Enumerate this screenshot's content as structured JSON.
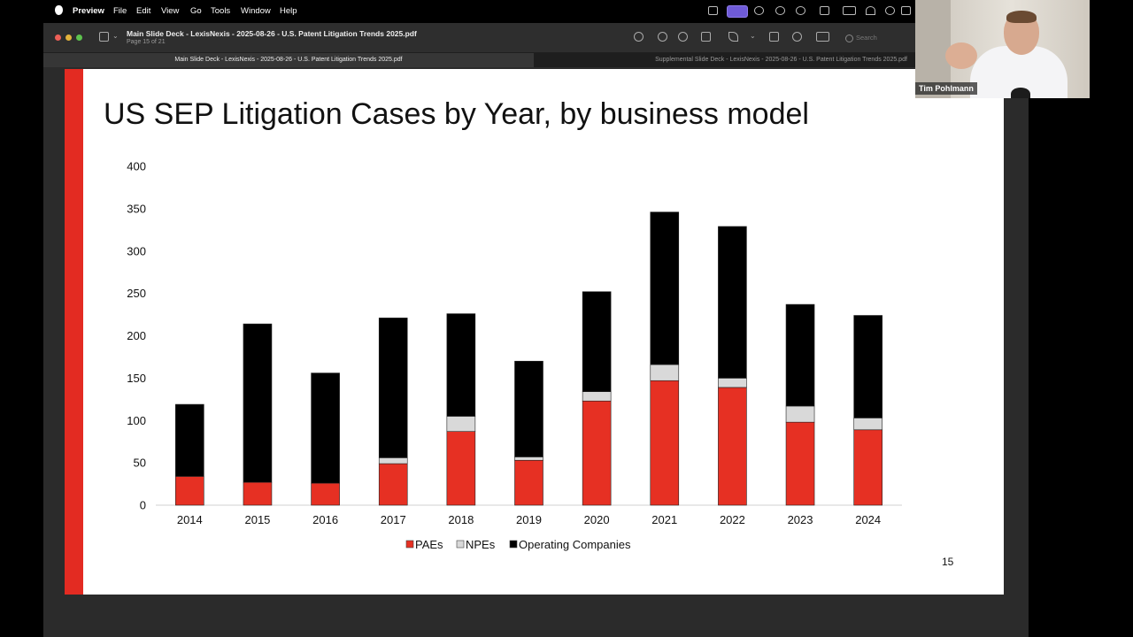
{
  "menubar": {
    "app": "Preview",
    "items": [
      "File",
      "Edit",
      "View",
      "Go",
      "Tools",
      "Window",
      "Help"
    ]
  },
  "window": {
    "title": "Main Slide Deck - LexisNexis - 2025-08-26 - U.S. Patent Litigation Trends 2025.pdf",
    "subtitle": "Page 15 of 21",
    "search_placeholder": "Search",
    "tabs": [
      {
        "label": "Main Slide Deck - LexisNexis - 2025-08-26 - U.S. Patent Litigation Trends 2025.pdf"
      },
      {
        "label": "Supplemental Slide Deck - LexisNexis - 2025-08-26 - U.S. Patent Litigation Trends 2025.pdf"
      }
    ]
  },
  "slide": {
    "title": "US SEP Litigation Cases by Year, by business model",
    "page_number": "15"
  },
  "webcam": {
    "name": "Tim Pohlmann"
  },
  "colors": {
    "accent_red": "#e32b22",
    "paes": "#e63023",
    "npes": "#d9d9d9",
    "operating_companies": "#000000"
  },
  "chart_data": {
    "type": "bar",
    "stacked": true,
    "categories": [
      "2014",
      "2015",
      "2016",
      "2017",
      "2018",
      "2019",
      "2020",
      "2021",
      "2022",
      "2023",
      "2024"
    ],
    "series": [
      {
        "name": "PAEs",
        "color": "#e63023",
        "values": [
          34,
          27,
          26,
          49,
          87,
          53,
          123,
          147,
          139,
          98,
          89
        ]
      },
      {
        "name": "NPEs",
        "color": "#d9d9d9",
        "values": [
          0,
          0,
          0,
          7,
          18,
          4,
          11,
          19,
          11,
          19,
          14
        ]
      },
      {
        "name": "Operating Companies",
        "color": "#000000",
        "values": [
          85,
          187,
          130,
          165,
          121,
          113,
          118,
          180,
          179,
          120,
          121
        ]
      }
    ],
    "yticks": [
      "0",
      "50",
      "100",
      "150",
      "200",
      "250",
      "300",
      "350",
      "400"
    ],
    "ylim": [
      0,
      400
    ],
    "legend": "bottom",
    "grid": false
  }
}
